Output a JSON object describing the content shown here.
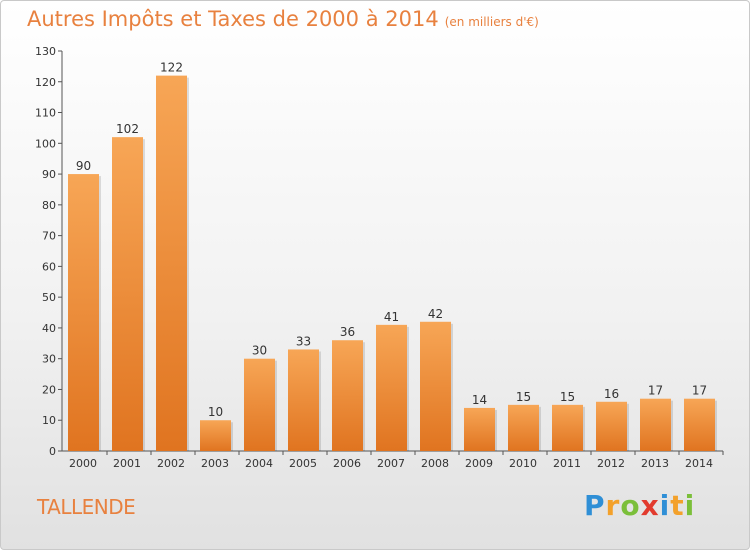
{
  "title": "Autres Impôts et Taxes de 2000 à 2014",
  "subtitle": "(en milliers d'€)",
  "commune": "TALLENDE",
  "logo_text": "Proxiti",
  "colors": {
    "accent": "#e8813f",
    "bar_light": "#f7a656",
    "bar_dark": "#e07420"
  },
  "chart_data": {
    "type": "bar",
    "categories": [
      "2000",
      "2001",
      "2002",
      "2003",
      "2004",
      "2005",
      "2006",
      "2007",
      "2008",
      "2009",
      "2010",
      "2011",
      "2012",
      "2013",
      "2014"
    ],
    "values": [
      90,
      102,
      122,
      10,
      30,
      33,
      36,
      41,
      42,
      14,
      15,
      15,
      16,
      17,
      17
    ],
    "ylim": [
      0,
      130
    ],
    "yticks": [
      0,
      10,
      20,
      30,
      40,
      50,
      60,
      70,
      80,
      90,
      100,
      110,
      120,
      130
    ],
    "data_labels": true,
    "grid": false,
    "xlabel": "",
    "ylabel": ""
  }
}
